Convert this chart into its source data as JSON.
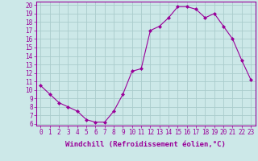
{
  "x": [
    0,
    1,
    2,
    3,
    4,
    5,
    6,
    7,
    8,
    9,
    10,
    11,
    12,
    13,
    14,
    15,
    16,
    17,
    18,
    19,
    20,
    21,
    22,
    23
  ],
  "y": [
    10.5,
    9.5,
    8.5,
    8.0,
    7.5,
    6.5,
    6.2,
    6.2,
    7.5,
    9.5,
    12.2,
    12.5,
    17.0,
    17.5,
    18.5,
    19.8,
    19.8,
    19.5,
    18.5,
    19.0,
    17.5,
    16.0,
    13.5,
    11.2
  ],
  "line_color": "#990099",
  "marker": "D",
  "markersize": 2,
  "linewidth": 0.8,
  "bg_color": "#cce8e8",
  "grid_color": "#aacccc",
  "xlabel": "Windchill (Refroidissement éolien,°C)",
  "xlabel_color": "#990099",
  "tick_color": "#990099",
  "xlim_min": -0.5,
  "xlim_max": 23.5,
  "ylim_min": 5.8,
  "ylim_max": 20.4,
  "xticks": [
    0,
    1,
    2,
    3,
    4,
    5,
    6,
    7,
    8,
    9,
    10,
    11,
    12,
    13,
    14,
    15,
    16,
    17,
    18,
    19,
    20,
    21,
    22,
    23
  ],
  "yticks": [
    6,
    7,
    8,
    9,
    10,
    11,
    12,
    13,
    14,
    15,
    16,
    17,
    18,
    19,
    20
  ],
  "tick_fontsize": 5.5,
  "xlabel_fontsize": 6.5
}
